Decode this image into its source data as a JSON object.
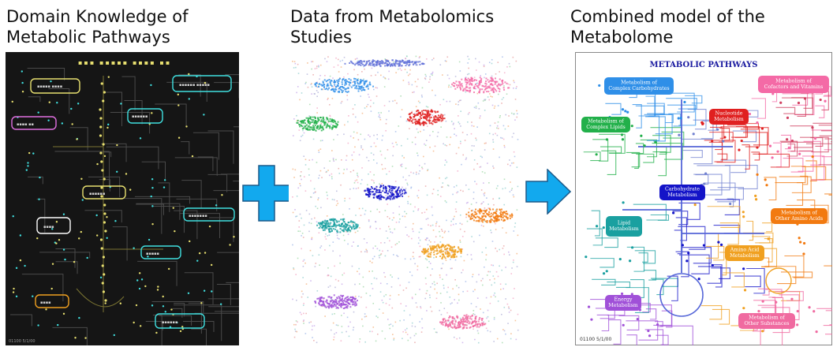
{
  "headings": {
    "domain_knowledge": "Domain Knowledge of\nMetabolic Pathways",
    "data": "Data from Metabolomics\nStudies",
    "combined": "Combined model of the\nMetabolome"
  },
  "colors": {
    "complex_carbohydrate": "#2f8fe8",
    "cofactors_vitamins": "#f46aa6",
    "complex_lipids": "#22b04a",
    "nucleotide": "#e02020",
    "carbohydrate": "#1414c8",
    "other_amino_acids": "#f27a10",
    "lipid": "#1aa0a0",
    "amino_acid": "#f0a020",
    "energy": "#a050d8",
    "other_substances": "#f06aa0",
    "dark_bg": "#151515",
    "dark_line": "#e8e070",
    "dark_cyan": "#40e0e0"
  },
  "combined_map": {
    "title": "METABOLIC PATHWAYS",
    "footer": "01100  5/1/00",
    "labels": {
      "complex_carbohydrate": [
        "Metabolism of",
        "Complex Carbohydrates"
      ],
      "cofactors": [
        "Metabolism of",
        "Cofactors and Vitamins"
      ],
      "complex_lipids": [
        "Metabolism of",
        "Complex Lipids"
      ],
      "nucleotide": [
        "Nucleotide",
        "Metabolism"
      ],
      "carbohydrate": [
        "Carbohydrate",
        "Metabolism"
      ],
      "other_amino": [
        "Metabolism of",
        "Other Amino Acids"
      ],
      "lipid": [
        "Lipid",
        "Metabolism"
      ],
      "amino_acid": [
        "Amino Acid",
        "Metabolism"
      ],
      "energy": [
        "Energy",
        "Metabolism"
      ],
      "other_substances": [
        "Metabolism of",
        "Other Substances"
      ]
    }
  },
  "dark_map": {
    "footer": "01100  5/1/00"
  }
}
